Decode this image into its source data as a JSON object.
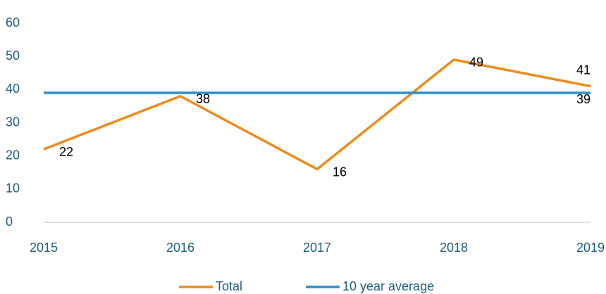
{
  "chart_data": {
    "type": "line",
    "categories": [
      "2015",
      "2016",
      "2017",
      "2018",
      "2019"
    ],
    "series": [
      {
        "name": "Total",
        "color": "#ed8b1e",
        "values": [
          22,
          38,
          16,
          49,
          41
        ]
      },
      {
        "name": "10 year average",
        "color": "#2e8ccc",
        "values": [
          39,
          39,
          39,
          39,
          39
        ]
      }
    ],
    "ylim": [
      0,
      60
    ],
    "yticks": [
      0,
      10,
      20,
      30,
      40,
      50,
      60
    ],
    "grid": false,
    "legend": "bottom"
  }
}
